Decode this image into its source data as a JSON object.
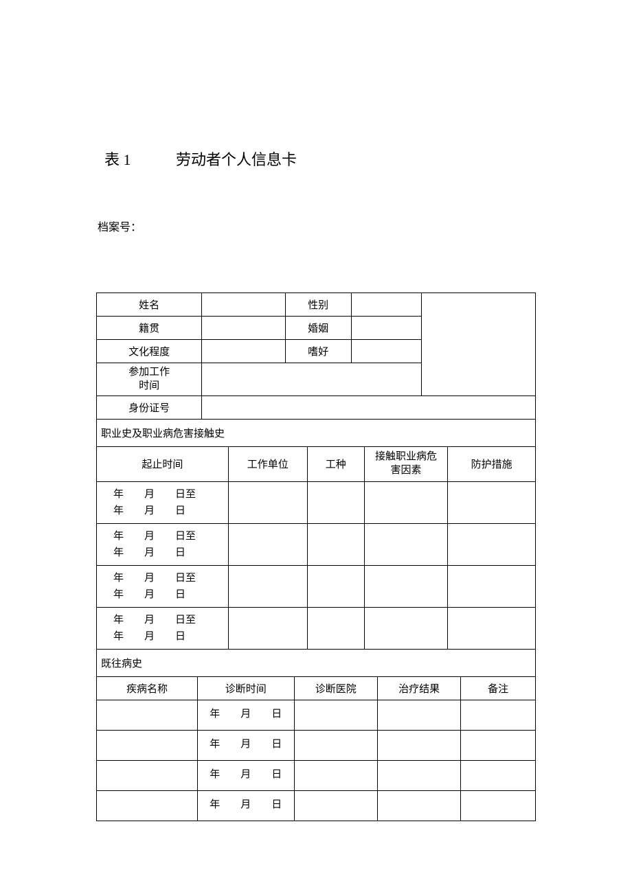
{
  "header": {
    "table_label": "表 1",
    "title": "劳动者个人信息卡"
  },
  "file_no_label": "档案号：",
  "personal": {
    "name_label": "姓名",
    "gender_label": "性别",
    "origin_label": "籍贯",
    "marriage_label": "婚姻",
    "education_label": "文化程度",
    "hobby_label": "嗜好",
    "work_start_label": "参加工作\n时间",
    "id_label": "身份证号"
  },
  "occupation": {
    "section_title": "职业史及职业病危害接触史",
    "headers": {
      "period": "起止时间",
      "employer": "工作单位",
      "job_type": "工种",
      "hazard": "接触职业病危\n害因素",
      "protection": "防护措施"
    },
    "date_template_from": "年　　月　　日至",
    "date_template_to": "年　　月　　日"
  },
  "history": {
    "section_title": "既往病史",
    "headers": {
      "disease": "疾病名称",
      "diag_time": "诊断时间",
      "hospital": "诊断医院",
      "result": "治疗结果",
      "remark": "备注"
    },
    "date_template": "年　　月　　日"
  }
}
